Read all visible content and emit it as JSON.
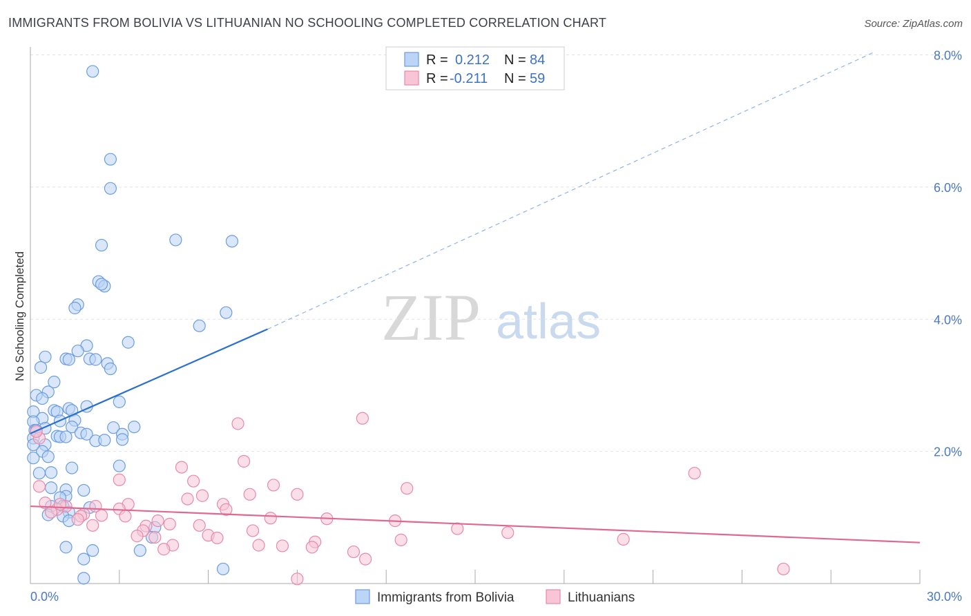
{
  "chart_data": {
    "type": "scatter",
    "title": "IMMIGRANTS FROM BOLIVIA VS LITHUANIAN NO SCHOOLING COMPLETED CORRELATION CHART",
    "source": "Source: ZipAtlas.com",
    "ylabel": "No Schooling Completed",
    "xlim": [
      0,
      30
    ],
    "ylim": [
      0,
      8
    ],
    "y_ticks": [
      {
        "value": 2,
        "label": "2.0%"
      },
      {
        "value": 4,
        "label": "4.0%"
      },
      {
        "value": 6,
        "label": "6.0%"
      },
      {
        "value": 8,
        "label": "8.0%"
      }
    ],
    "x_tick_labels": {
      "left": "0.0%",
      "right": "30.0%"
    },
    "x_minor_ticks": [
      3,
      6,
      9,
      12,
      15,
      18,
      21,
      24,
      27,
      30
    ],
    "watermark": {
      "zip": "ZIP",
      "atlas": "atlas"
    },
    "legend": [
      {
        "r_label": "R =",
        "r": "0.212",
        "n_label": "N =",
        "n": "84"
      },
      {
        "r_label": "R =",
        "r": "-0.211",
        "n_label": "N =",
        "n": "59"
      }
    ],
    "series": [
      {
        "name": "Immigrants from Bolivia",
        "color": "#6a9de0",
        "fill": "#bcd4f6",
        "trend": {
          "x0": 0,
          "y0": 2.27,
          "x1": 8.0,
          "y1": 3.85,
          "dash_x1": 28.5,
          "dash_y1": 8.05,
          "color": "#2a6fd0"
        },
        "points": [
          [
            2.1,
            7.75
          ],
          [
            2.7,
            6.42
          ],
          [
            2.7,
            5.98
          ],
          [
            2.4,
            5.12
          ],
          [
            4.9,
            5.2
          ],
          [
            6.8,
            5.18
          ],
          [
            2.3,
            4.57
          ],
          [
            2.5,
            4.5
          ],
          [
            2.4,
            4.53
          ],
          [
            1.6,
            4.22
          ],
          [
            1.5,
            4.17
          ],
          [
            6.6,
            4.1
          ],
          [
            5.7,
            3.9
          ],
          [
            3.3,
            3.65
          ],
          [
            1.9,
            3.6
          ],
          [
            1.6,
            3.52
          ],
          [
            0.5,
            3.43
          ],
          [
            1.2,
            3.4
          ],
          [
            1.3,
            3.39
          ],
          [
            2.0,
            3.4
          ],
          [
            2.2,
            3.39
          ],
          [
            2.6,
            3.33
          ],
          [
            0.35,
            3.27
          ],
          [
            2.7,
            3.25
          ],
          [
            0.8,
            3.05
          ],
          [
            0.6,
            2.9
          ],
          [
            0.2,
            2.85
          ],
          [
            0.4,
            2.8
          ],
          [
            3.0,
            2.75
          ],
          [
            1.9,
            2.68
          ],
          [
            1.3,
            2.65
          ],
          [
            1.4,
            2.62
          ],
          [
            0.8,
            2.62
          ],
          [
            0.9,
            2.6
          ],
          [
            0.1,
            2.6
          ],
          [
            0.4,
            2.5
          ],
          [
            1.5,
            2.47
          ],
          [
            1.0,
            2.46
          ],
          [
            0.1,
            2.45
          ],
          [
            1.4,
            2.37
          ],
          [
            3.5,
            2.37
          ],
          [
            2.8,
            2.36
          ],
          [
            0.5,
            2.35
          ],
          [
            0.15,
            2.32
          ],
          [
            0.2,
            2.32
          ],
          [
            1.7,
            2.28
          ],
          [
            1.9,
            2.26
          ],
          [
            3.1,
            2.26
          ],
          [
            0.9,
            2.23
          ],
          [
            1.0,
            2.22
          ],
          [
            1.2,
            2.22
          ],
          [
            2.2,
            2.16
          ],
          [
            2.5,
            2.17
          ],
          [
            3.1,
            2.18
          ],
          [
            0.1,
            2.2
          ],
          [
            0.5,
            2.1
          ],
          [
            0.4,
            2.0
          ],
          [
            0.6,
            1.92
          ],
          [
            0.1,
            1.9
          ],
          [
            1.4,
            1.75
          ],
          [
            3.0,
            1.78
          ],
          [
            0.3,
            1.67
          ],
          [
            0.7,
            1.68
          ],
          [
            0.7,
            1.45
          ],
          [
            1.2,
            1.42
          ],
          [
            1.8,
            1.41
          ],
          [
            1.2,
            1.32
          ],
          [
            1.0,
            1.3
          ],
          [
            0.7,
            1.17
          ],
          [
            1.1,
            1.17
          ],
          [
            2.0,
            1.15
          ],
          [
            1.3,
            1.08
          ],
          [
            0.6,
            1.04
          ],
          [
            1.1,
            1.02
          ],
          [
            1.3,
            0.95
          ],
          [
            4.2,
            0.85
          ],
          [
            4.1,
            0.7
          ],
          [
            1.2,
            0.55
          ],
          [
            2.1,
            0.5
          ],
          [
            3.7,
            0.5
          ],
          [
            1.8,
            0.37
          ],
          [
            6.5,
            0.22
          ],
          [
            1.8,
            0.08
          ],
          [
            0.1,
            2.1
          ]
        ]
      },
      {
        "name": "Lithuanians",
        "color": "#e889a7",
        "fill": "#f7c5d5",
        "trend": {
          "x0": 0,
          "y0": 1.17,
          "x1": 30,
          "y1": 0.62,
          "color": "#e06890"
        },
        "points": [
          [
            0.3,
            2.2
          ],
          [
            7.0,
            2.42
          ],
          [
            11.2,
            2.5
          ],
          [
            7.2,
            1.85
          ],
          [
            5.1,
            1.76
          ],
          [
            22.4,
            1.67
          ],
          [
            3.0,
            1.57
          ],
          [
            5.5,
            1.55
          ],
          [
            8.2,
            1.49
          ],
          [
            0.3,
            1.47
          ],
          [
            12.7,
            1.44
          ],
          [
            7.4,
            1.35
          ],
          [
            9.0,
            1.35
          ],
          [
            5.8,
            1.33
          ],
          [
            5.3,
            1.28
          ],
          [
            0.5,
            1.22
          ],
          [
            3.3,
            1.2
          ],
          [
            6.5,
            1.2
          ],
          [
            6.6,
            1.12
          ],
          [
            2.2,
            1.17
          ],
          [
            1.2,
            1.17
          ],
          [
            0.9,
            1.12
          ],
          [
            3.0,
            1.13
          ],
          [
            0.7,
            1.08
          ],
          [
            1.8,
            1.05
          ],
          [
            2.4,
            1.03
          ],
          [
            1.7,
            1.02
          ],
          [
            1.6,
            0.97
          ],
          [
            3.2,
            1.02
          ],
          [
            8.1,
            0.99
          ],
          [
            10.0,
            0.98
          ],
          [
            12.3,
            0.95
          ],
          [
            4.3,
            0.95
          ],
          [
            4.7,
            0.9
          ],
          [
            2.1,
            0.88
          ],
          [
            5.7,
            0.88
          ],
          [
            3.9,
            0.87
          ],
          [
            3.8,
            0.8
          ],
          [
            7.5,
            0.8
          ],
          [
            14.4,
            0.83
          ],
          [
            16.1,
            0.77
          ],
          [
            6.0,
            0.73
          ],
          [
            3.6,
            0.72
          ],
          [
            4.2,
            0.7
          ],
          [
            6.3,
            0.69
          ],
          [
            12.5,
            0.66
          ],
          [
            20.0,
            0.67
          ],
          [
            9.6,
            0.63
          ],
          [
            4.8,
            0.58
          ],
          [
            7.7,
            0.58
          ],
          [
            8.5,
            0.57
          ],
          [
            9.5,
            0.55
          ],
          [
            4.5,
            0.52
          ],
          [
            10.9,
            0.48
          ],
          [
            11.3,
            0.37
          ],
          [
            9.0,
            0.07
          ],
          [
            25.4,
            0.22
          ],
          [
            1.0,
            1.2
          ],
          [
            0.2,
            2.3
          ]
        ]
      }
    ]
  }
}
